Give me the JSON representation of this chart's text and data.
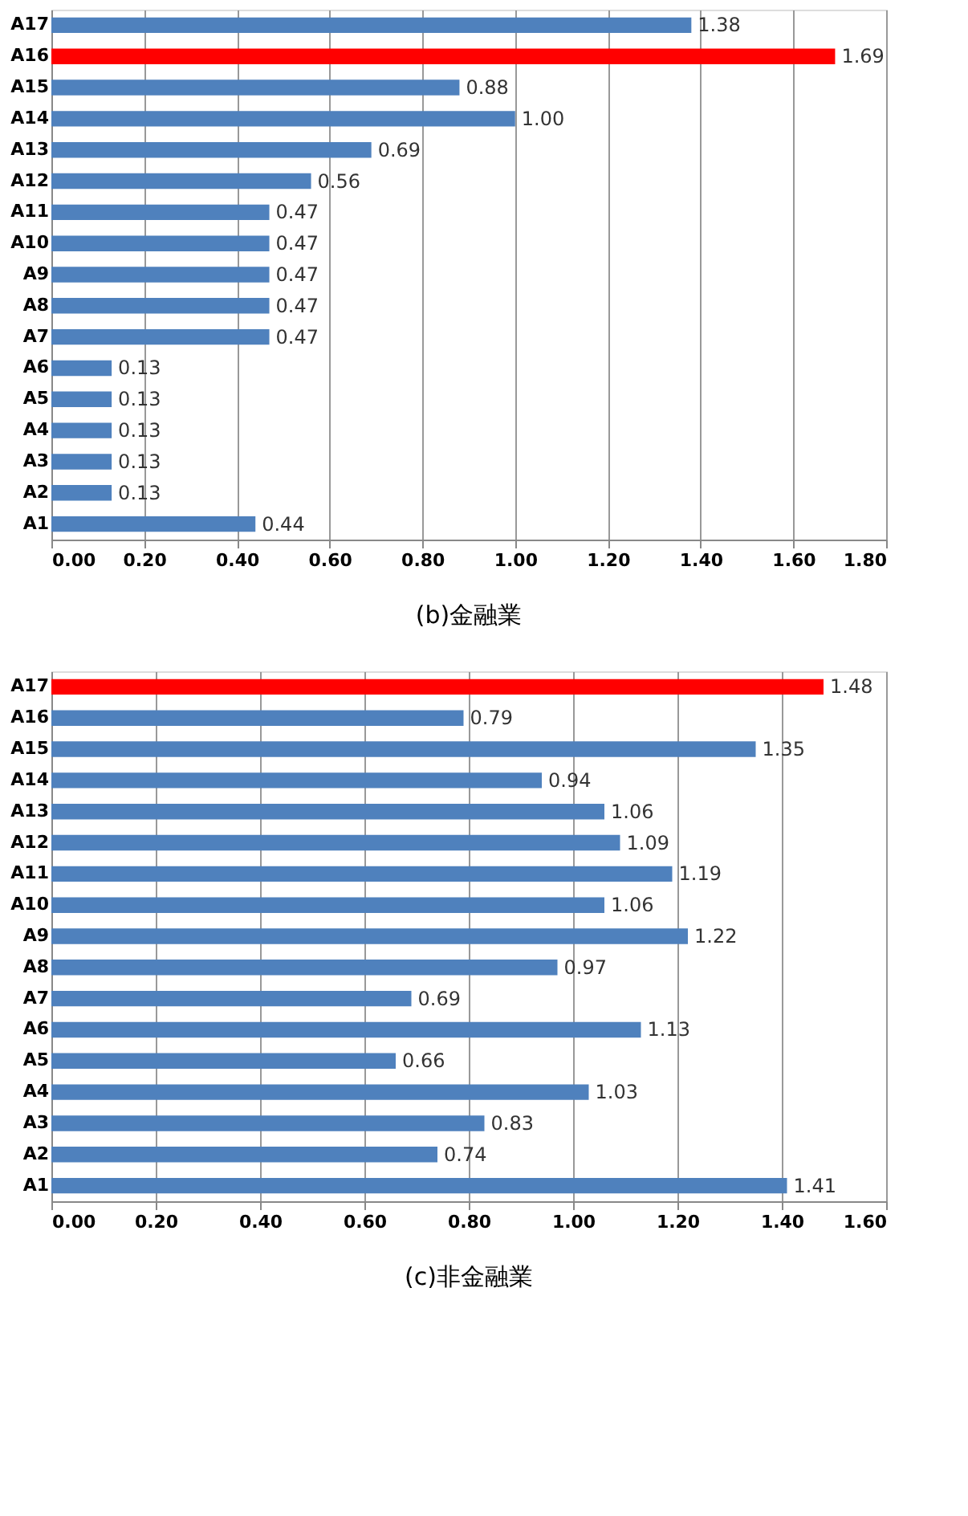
{
  "chart_data": [
    {
      "type": "bar",
      "orientation": "horizontal",
      "title": "(b)金融業",
      "categories": [
        "A17",
        "A16",
        "A15",
        "A14",
        "A13",
        "A12",
        "A11",
        "A10",
        "A9",
        "A8",
        "A7",
        "A6",
        "A5",
        "A4",
        "A3",
        "A2",
        "A1"
      ],
      "values": [
        1.38,
        1.69,
        0.88,
        1.0,
        0.69,
        0.56,
        0.47,
        0.47,
        0.47,
        0.47,
        0.47,
        0.13,
        0.13,
        0.13,
        0.13,
        0.13,
        0.44
      ],
      "value_labels": [
        "1.38",
        "1.69",
        "0.88",
        "1.00",
        "0.69",
        "0.56",
        "0.47",
        "0.47",
        "0.47",
        "0.47",
        "0.47",
        "0.13",
        "0.13",
        "0.13",
        "0.13",
        "0.13",
        "0.44"
      ],
      "colors": [
        "#4f81bd",
        "#ff0000",
        "#4f81bd",
        "#4f81bd",
        "#4f81bd",
        "#4f81bd",
        "#4f81bd",
        "#4f81bd",
        "#4f81bd",
        "#4f81bd",
        "#4f81bd",
        "#4f81bd",
        "#4f81bd",
        "#4f81bd",
        "#4f81bd",
        "#4f81bd",
        "#4f81bd"
      ],
      "xlim": [
        0,
        1.8
      ],
      "xticks": [
        {
          "value": 0,
          "label": "0.00"
        },
        {
          "value": 0.2,
          "label": "0.20"
        },
        {
          "value": 0.4,
          "label": "0.40"
        },
        {
          "value": 0.6,
          "label": "0.60"
        },
        {
          "value": 0.8,
          "label": "0.80"
        },
        {
          "value": 1.0,
          "label": "1.00"
        },
        {
          "value": 1.2,
          "label": "1.20"
        },
        {
          "value": 1.4,
          "label": "1.40"
        },
        {
          "value": 1.6,
          "label": "1.60"
        },
        {
          "value": 1.8,
          "label": "1.80"
        }
      ],
      "grid": "x"
    },
    {
      "type": "bar",
      "orientation": "horizontal",
      "title": "(c)非金融業",
      "categories": [
        "A17",
        "A16",
        "A15",
        "A14",
        "A13",
        "A12",
        "A11",
        "A10",
        "A9",
        "A8",
        "A7",
        "A6",
        "A5",
        "A4",
        "A3",
        "A2",
        "A1"
      ],
      "values": [
        1.48,
        0.79,
        1.35,
        0.94,
        1.06,
        1.09,
        1.19,
        1.06,
        1.22,
        0.97,
        0.69,
        1.13,
        0.66,
        1.03,
        0.83,
        0.74,
        1.41
      ],
      "value_labels": [
        "1.48",
        "0.79",
        "1.35",
        "0.94",
        "1.06",
        "1.09",
        "1.19",
        "1.06",
        "1.22",
        "0.97",
        "0.69",
        "1.13",
        "0.66",
        "1.03",
        "0.83",
        "0.74",
        "1.41"
      ],
      "colors": [
        "#ff0000",
        "#4f81bd",
        "#4f81bd",
        "#4f81bd",
        "#4f81bd",
        "#4f81bd",
        "#4f81bd",
        "#4f81bd",
        "#4f81bd",
        "#4f81bd",
        "#4f81bd",
        "#4f81bd",
        "#4f81bd",
        "#4f81bd",
        "#4f81bd",
        "#4f81bd",
        "#4f81bd"
      ],
      "xlim": [
        0,
        1.6
      ],
      "xticks": [
        {
          "value": 0,
          "label": "0.00"
        },
        {
          "value": 0.2,
          "label": "0.20"
        },
        {
          "value": 0.4,
          "label": "0.40"
        },
        {
          "value": 0.6,
          "label": "0.60"
        },
        {
          "value": 0.8,
          "label": "0.80"
        },
        {
          "value": 1.0,
          "label": "1.00"
        },
        {
          "value": 1.2,
          "label": "1.20"
        },
        {
          "value": 1.4,
          "label": "1.40"
        },
        {
          "value": 1.6,
          "label": "1.60"
        }
      ],
      "grid": "x"
    }
  ]
}
